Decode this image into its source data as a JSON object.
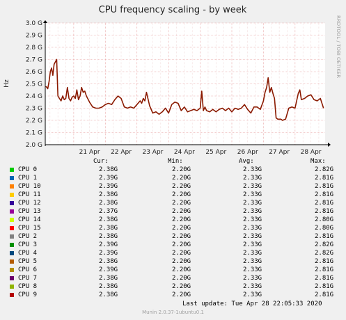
{
  "chart_data": {
    "type": "line",
    "title": "CPU frequency scaling - by week",
    "ylabel": "Hz",
    "y_ticks": [
      "2.0 G",
      "2.1 G",
      "2.2 G",
      "2.3 G",
      "2.4 G",
      "2.5 G",
      "2.6 G",
      "2.7 G",
      "2.8 G",
      "2.9 G",
      "3.0 G"
    ],
    "ylim": [
      2.0,
      3.0
    ],
    "x_ticks": [
      "21 Apr",
      "22 Apr",
      "23 Apr",
      "24 Apr",
      "25 Apr",
      "26 Apr",
      "27 Apr",
      "28 Apr"
    ],
    "x_tick_days": [
      21,
      22,
      23,
      24,
      25,
      26,
      27,
      28
    ],
    "xlim": [
      20.1,
      28.95
    ],
    "grid": true,
    "series_color": "#8b1a00",
    "x": [
      20.12,
      20.18,
      20.22,
      20.26,
      20.3,
      20.34,
      20.38,
      20.42,
      20.46,
      20.5,
      20.55,
      20.6,
      20.65,
      20.7,
      20.75,
      20.8,
      20.85,
      20.9,
      20.95,
      21.0,
      21.05,
      21.1,
      21.15,
      21.2,
      21.25,
      21.3,
      21.35,
      21.4,
      21.5,
      21.6,
      21.7,
      21.8,
      21.9,
      22.0,
      22.1,
      22.2,
      22.3,
      22.4,
      22.5,
      22.6,
      22.7,
      22.8,
      22.9,
      23.0,
      23.1,
      23.15,
      23.2,
      23.25,
      23.3,
      23.4,
      23.5,
      23.6,
      23.7,
      23.8,
      23.9,
      24.0,
      24.1,
      24.2,
      24.3,
      24.4,
      24.5,
      24.6,
      24.7,
      24.8,
      24.9,
      25.0,
      25.05,
      25.1,
      25.15,
      25.2,
      25.3,
      25.4,
      25.5,
      25.6,
      25.7,
      25.8,
      25.9,
      26.0,
      26.1,
      26.2,
      26.3,
      26.4,
      26.5,
      26.6,
      26.7,
      26.8,
      26.9,
      27.0,
      27.05,
      27.1,
      27.15,
      27.2,
      27.25,
      27.3,
      27.35,
      27.4,
      27.45,
      27.5,
      27.55,
      27.6,
      27.7,
      27.8,
      27.9,
      28.0,
      28.05,
      28.1,
      28.15,
      28.2,
      28.3,
      28.4,
      28.5,
      28.6,
      28.7,
      28.8,
      28.9
    ],
    "y": [
      2.48,
      2.46,
      2.52,
      2.6,
      2.63,
      2.57,
      2.66,
      2.68,
      2.7,
      2.4,
      2.38,
      2.36,
      2.4,
      2.37,
      2.38,
      2.47,
      2.38,
      2.36,
      2.39,
      2.4,
      2.38,
      2.45,
      2.37,
      2.4,
      2.47,
      2.43,
      2.44,
      2.4,
      2.35,
      2.31,
      2.3,
      2.3,
      2.31,
      2.33,
      2.34,
      2.33,
      2.37,
      2.4,
      2.38,
      2.31,
      2.3,
      2.31,
      2.3,
      2.33,
      2.36,
      2.34,
      2.38,
      2.36,
      2.43,
      2.32,
      2.26,
      2.27,
      2.25,
      2.27,
      2.3,
      2.26,
      2.33,
      2.35,
      2.34,
      2.28,
      2.31,
      2.27,
      2.28,
      2.29,
      2.28,
      2.3,
      2.44,
      2.28,
      2.31,
      2.28,
      2.27,
      2.29,
      2.27,
      2.29,
      2.3,
      2.28,
      2.3,
      2.27,
      2.3,
      2.29,
      2.3,
      2.33,
      2.29,
      2.26,
      2.31,
      2.31,
      2.29,
      2.36,
      2.43,
      2.47,
      2.55,
      2.43,
      2.47,
      2.42,
      2.38,
      2.22,
      2.21,
      2.21,
      2.21,
      2.2,
      2.21,
      2.3,
      2.31,
      2.3,
      2.36,
      2.42,
      2.45,
      2.37,
      2.38,
      2.4,
      2.41,
      2.37,
      2.36,
      2.38,
      2.3
    ]
  },
  "side_label": "RRDTOOL / TOBI OETIKER",
  "legend": {
    "headers": {
      "cur": "Cur:",
      "min": "Min:",
      "avg": "Avg:",
      "max": "Max:"
    },
    "rows": [
      {
        "name": "CPU 0",
        "color": "#00cc00",
        "cur": "2.38G",
        "min": "2.20G",
        "avg": "2.33G",
        "max": "2.82G"
      },
      {
        "name": "CPU 1",
        "color": "#0066b3",
        "cur": "2.39G",
        "min": "2.20G",
        "avg": "2.33G",
        "max": "2.81G"
      },
      {
        "name": "CPU 10",
        "color": "#ff8000",
        "cur": "2.39G",
        "min": "2.20G",
        "avg": "2.33G",
        "max": "2.81G"
      },
      {
        "name": "CPU 11",
        "color": "#ffcc00",
        "cur": "2.38G",
        "min": "2.20G",
        "avg": "2.33G",
        "max": "2.81G"
      },
      {
        "name": "CPU 12",
        "color": "#330099",
        "cur": "2.38G",
        "min": "2.20G",
        "avg": "2.33G",
        "max": "2.81G"
      },
      {
        "name": "CPU 13",
        "color": "#990099",
        "cur": "2.37G",
        "min": "2.20G",
        "avg": "2.33G",
        "max": "2.81G"
      },
      {
        "name": "CPU 14",
        "color": "#ccff00",
        "cur": "2.38G",
        "min": "2.20G",
        "avg": "2.33G",
        "max": "2.80G"
      },
      {
        "name": "CPU 15",
        "color": "#ff0000",
        "cur": "2.38G",
        "min": "2.20G",
        "avg": "2.33G",
        "max": "2.80G"
      },
      {
        "name": "CPU 2",
        "color": "#808080",
        "cur": "2.38G",
        "min": "2.20G",
        "avg": "2.33G",
        "max": "2.81G"
      },
      {
        "name": "CPU 3",
        "color": "#008f00",
        "cur": "2.39G",
        "min": "2.20G",
        "avg": "2.33G",
        "max": "2.82G"
      },
      {
        "name": "CPU 4",
        "color": "#00487d",
        "cur": "2.39G",
        "min": "2.20G",
        "avg": "2.33G",
        "max": "2.82G"
      },
      {
        "name": "CPU 5",
        "color": "#b35a00",
        "cur": "2.38G",
        "min": "2.20G",
        "avg": "2.33G",
        "max": "2.81G"
      },
      {
        "name": "CPU 6",
        "color": "#b38f00",
        "cur": "2.39G",
        "min": "2.20G",
        "avg": "2.33G",
        "max": "2.81G"
      },
      {
        "name": "CPU 7",
        "color": "#6b006b",
        "cur": "2.38G",
        "min": "2.20G",
        "avg": "2.33G",
        "max": "2.81G"
      },
      {
        "name": "CPU 8",
        "color": "#8fb300",
        "cur": "2.38G",
        "min": "2.20G",
        "avg": "2.33G",
        "max": "2.81G"
      },
      {
        "name": "CPU 9",
        "color": "#b30000",
        "cur": "2.38G",
        "min": "2.20G",
        "avg": "2.33G",
        "max": "2.81G"
      }
    ]
  },
  "footer": {
    "last_update": "Last update: Tue Apr 28 22:05:33 2020",
    "munin": "Munin 2.0.37-1ubuntu0.1"
  }
}
